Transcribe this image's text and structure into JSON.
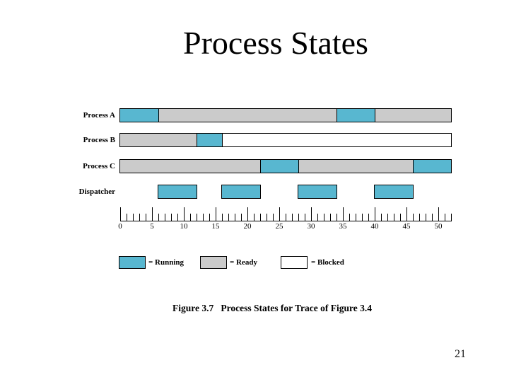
{
  "slide": {
    "title": "Process States",
    "caption": "Figure 3.7   Process States for Trace of Figure 3.4",
    "page_number": "21"
  },
  "chart_data": {
    "type": "bar",
    "subtype": "process-state-timeline-gantt",
    "title": "Process States",
    "x_axis": {
      "min": 0,
      "max": 52,
      "minor_tick_interval": 1,
      "major_tick_interval": 5,
      "tick_labels": [
        "0",
        "5",
        "10",
        "15",
        "20",
        "25",
        "30",
        "35",
        "40",
        "45",
        "50"
      ]
    },
    "states": {
      "Running": {
        "color": "#58b7d0",
        "pattern": "solid"
      },
      "Ready": {
        "color": "#cbcbcb",
        "pattern": "solid"
      },
      "Blocked": {
        "color": "#ffffff",
        "pattern": "crosshatch"
      }
    },
    "rows": [
      {
        "label": "Process A",
        "style": "bar",
        "segments": [
          {
            "state": "Running",
            "start": 0,
            "end": 6
          },
          {
            "state": "Ready",
            "start": 6,
            "end": 34
          },
          {
            "state": "Running",
            "start": 34,
            "end": 40
          },
          {
            "state": "Ready",
            "start": 40,
            "end": 52
          }
        ]
      },
      {
        "label": "Process B",
        "style": "bar",
        "segments": [
          {
            "state": "Ready",
            "start": 0,
            "end": 12
          },
          {
            "state": "Running",
            "start": 12,
            "end": 16
          },
          {
            "state": "Blocked",
            "start": 16,
            "end": 52
          }
        ]
      },
      {
        "label": "Process C",
        "style": "bar",
        "segments": [
          {
            "state": "Ready",
            "start": 0,
            "end": 22
          },
          {
            "state": "Running",
            "start": 22,
            "end": 28
          },
          {
            "state": "Ready",
            "start": 28,
            "end": 46
          },
          {
            "state": "Running",
            "start": 46,
            "end": 52
          }
        ]
      },
      {
        "label": "Dispatcher",
        "style": "blocks",
        "segments": [
          {
            "state": "Running",
            "start": 6,
            "end": 12
          },
          {
            "state": "Running",
            "start": 16,
            "end": 22
          },
          {
            "state": "Running",
            "start": 28,
            "end": 34
          },
          {
            "state": "Running",
            "start": 40,
            "end": 46
          }
        ]
      }
    ],
    "legend": [
      {
        "state": "Running",
        "label": "= Running"
      },
      {
        "state": "Ready",
        "label": "= Ready"
      },
      {
        "state": "Blocked",
        "label": "= Blocked"
      }
    ],
    "layout_hints": {
      "legend_position": "below",
      "grid": false
    }
  }
}
